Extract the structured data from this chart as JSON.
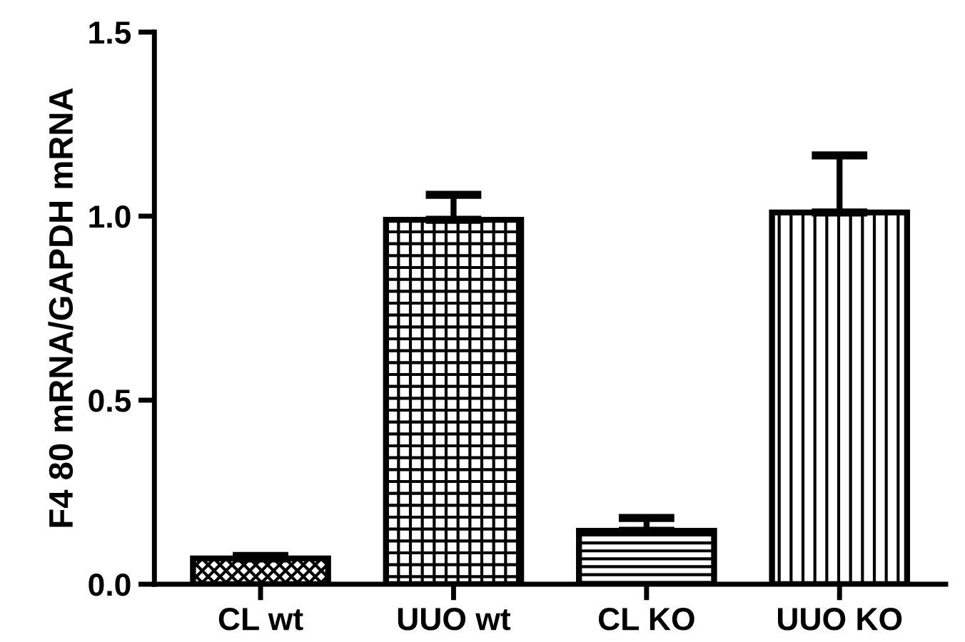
{
  "chart_data": {
    "type": "bar",
    "ylabel": "F4 80 mRNA/GAPDH mRNA",
    "categories": [
      "CL wt",
      "UUO wt",
      "CL KO",
      "UUO KO"
    ],
    "values": [
      0.07,
      0.99,
      0.145,
      1.01
    ],
    "errors": [
      [
        0.07,
        0.077
      ],
      [
        0.99,
        1.058
      ],
      [
        0.145,
        0.18
      ],
      [
        1.01,
        1.165
      ]
    ],
    "color": "#000000",
    "ylim": [
      0,
      1.5
    ],
    "yticks": [
      {
        "value": 0,
        "label": "0.0"
      },
      0.5,
      {
        "value": 1,
        "label": "1.0"
      },
      1.5
    ],
    "grid": false,
    "legend": false
  }
}
